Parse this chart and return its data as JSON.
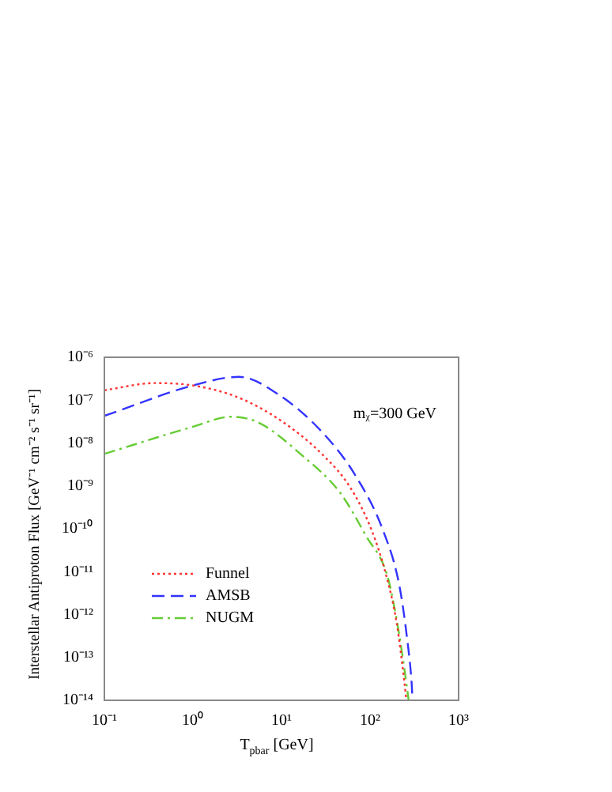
{
  "chart_data": {
    "type": "line",
    "xlabel": "T$_{pbar}$ [GeV]",
    "ylabel": "Interstellar Antiproton Flux [GeV⁻¹ cm⁻² s⁻¹ sr⁻¹]",
    "log": "xy",
    "grid": false,
    "legend": "bottom left",
    "marker": "none",
    "xlim": [
      0.1,
      1000
    ],
    "ylim": [
      1e-14,
      1e-06
    ],
    "xticks": [
      {
        "value": 0.1,
        "label": "10⁻¹"
      },
      {
        "value": 1,
        "label": "10⁰"
      },
      {
        "value": 10,
        "label": "10¹"
      },
      {
        "value": 100,
        "label": "10²"
      },
      {
        "value": 1000,
        "label": "10³"
      }
    ],
    "yticks": [
      {
        "value": 1e-14,
        "label": "10⁻¹⁴"
      },
      {
        "value": 1e-13,
        "label": "10⁻¹³"
      },
      {
        "value": 1e-12,
        "label": "10⁻¹²"
      },
      {
        "value": 1e-11,
        "label": "10⁻¹¹"
      },
      {
        "value": 1e-10,
        "label": "10⁻¹⁰"
      },
      {
        "value": 1e-09,
        "label": "10⁻⁹"
      },
      {
        "value": 1e-08,
        "label": "10⁻⁸"
      },
      {
        "value": 1e-07,
        "label": "10⁻⁷"
      },
      {
        "value": 1e-06,
        "label": "10⁻⁶"
      }
    ],
    "annotations": [
      "mᵪ=300 GeV"
    ],
    "series": [
      {
        "name": "Funnel",
        "color": "#ff3333",
        "line_style": "dotted",
        "x": [
          0.1,
          0.37,
          1,
          3.1,
          9.5,
          29.5,
          60,
          105,
          151,
          200,
          245,
          257
        ],
        "values": [
          1.7e-07,
          2.5e-07,
          2.2e-07,
          1.2e-07,
          3.5e-08,
          5.2e-09,
          9.1e-10,
          8.9e-11,
          8.7e-12,
          6.3e-13,
          2.5e-14,
          1e-14
        ]
      },
      {
        "name": "AMSB",
        "color": "#3333ff",
        "line_style": "dashed",
        "x": [
          0.1,
          1,
          3.3,
          9.5,
          29.5,
          69,
          141,
          214,
          263,
          295,
          302
        ],
        "values": [
          4.3e-08,
          2.2e-07,
          3.5e-07,
          1.3e-07,
          1.7e-08,
          1.7e-09,
          8.9e-11,
          4.8e-12,
          2.6e-13,
          2.5e-14,
          1e-14
        ]
      },
      {
        "name": "NUGM",
        "color": "#66cc33",
        "line_style": "dashdot",
        "x": [
          0.1,
          1,
          2.7,
          5.5,
          17,
          46,
          91,
          155,
          195,
          234,
          273
        ],
        "values": [
          5.6e-09,
          2.4e-08,
          4.1e-08,
          3e-08,
          5.2e-09,
          6.9e-10,
          6.6e-11,
          8.7e-12,
          1e-12,
          1e-13,
          1e-14
        ]
      }
    ]
  }
}
